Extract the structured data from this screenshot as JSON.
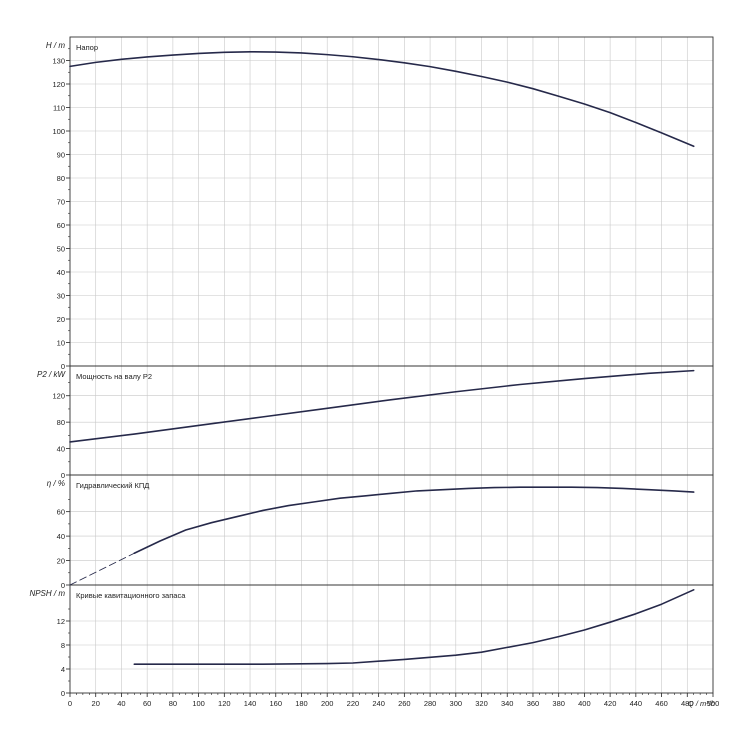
{
  "chart_data": {
    "type": "line",
    "x_axis": {
      "unit_label": "Q / m³/h",
      "min": 0,
      "max": 500,
      "ticks": [
        0,
        20,
        40,
        60,
        80,
        100,
        120,
        140,
        160,
        180,
        200,
        220,
        240,
        260,
        280,
        300,
        320,
        340,
        360,
        380,
        400,
        420,
        440,
        460,
        480,
        500
      ]
    },
    "panels": [
      {
        "id": "head",
        "axis_label": "H / m",
        "title": "Напор",
        "ylim": [
          0,
          140
        ],
        "yticks": [
          0,
          10,
          20,
          30,
          40,
          50,
          60,
          70,
          80,
          90,
          100,
          110,
          120,
          130
        ],
        "series": [
          {
            "x": [
              0,
              20,
              40,
              60,
              80,
              100,
              120,
              140,
              160,
              180,
              200,
              220,
              240,
              260,
              280,
              300,
              320,
              340,
              360,
              380,
              400,
              420,
              440,
              460,
              485
            ],
            "y": [
              127.5,
              129.2,
              130.5,
              131.5,
              132.3,
              133.0,
              133.5,
              133.7,
              133.6,
              133.2,
              132.5,
              131.6,
              130.4,
              129.0,
              127.4,
              125.4,
              123.2,
              120.8,
              118.0,
              114.8,
              111.5,
              107.8,
              103.6,
              99.2,
              93.5
            ]
          }
        ]
      },
      {
        "id": "power",
        "axis_label": "P2 / kW",
        "title": "Мощность на валу P2",
        "ylim": [
          0,
          165
        ],
        "yticks": [
          0,
          40,
          80,
          120
        ],
        "series": [
          {
            "x": [
              0,
              50,
              100,
              150,
              200,
              250,
              300,
              350,
              400,
              450,
              485
            ],
            "y": [
              50,
              62,
              75,
              88,
              101,
              114,
              126,
              137,
              146,
              154,
              158
            ]
          }
        ]
      },
      {
        "id": "efficiency",
        "axis_label": "η / %",
        "title": "Гидравлический КПД",
        "ylim": [
          0,
          90
        ],
        "yticks": [
          0,
          20,
          40,
          60
        ],
        "series": [
          {
            "x": [
              50,
              70,
              90,
              110,
              130,
              150,
              170,
              190,
              210,
              230,
              250,
              270,
              290,
              310,
              330,
              350,
              370,
              390,
              410,
              430,
              450,
              470,
              485
            ],
            "y": [
              26,
              36,
              45,
              51,
              56,
              61,
              65,
              68,
              71,
              73,
              75,
              77,
              78,
              79,
              79.7,
              80,
              80,
              80,
              79.7,
              79,
              78,
              77,
              76
            ]
          },
          {
            "x": [
              0,
              50
            ],
            "y": [
              0,
              26
            ],
            "style": "dashed"
          }
        ]
      },
      {
        "id": "npsh",
        "axis_label": "NPSH / m",
        "title": "Кривые кавитационного запаса",
        "ylim": [
          0,
          18
        ],
        "yticks": [
          0,
          4,
          8,
          12
        ],
        "series": [
          {
            "x": [
              50,
              100,
              150,
              200,
              220,
              260,
              300,
              320,
              340,
              360,
              380,
              400,
              420,
              440,
              460,
              485
            ],
            "y": [
              4.8,
              4.8,
              4.8,
              4.9,
              5.0,
              5.6,
              6.3,
              6.8,
              7.6,
              8.4,
              9.4,
              10.5,
              11.8,
              13.2,
              14.8,
              17.2
            ]
          }
        ]
      }
    ]
  }
}
